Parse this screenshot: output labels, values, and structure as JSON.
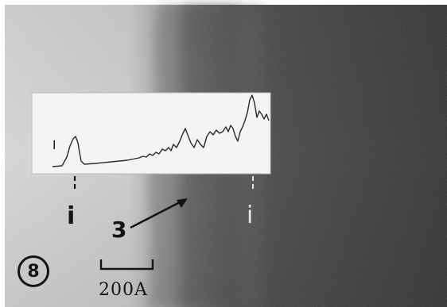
{
  "figure": {
    "number": "8",
    "scale_bar_label": "200A",
    "arrow_label": "3",
    "interface_marker_left": "i",
    "interface_marker_right": "i",
    "inset_axis_tick": "I"
  }
}
